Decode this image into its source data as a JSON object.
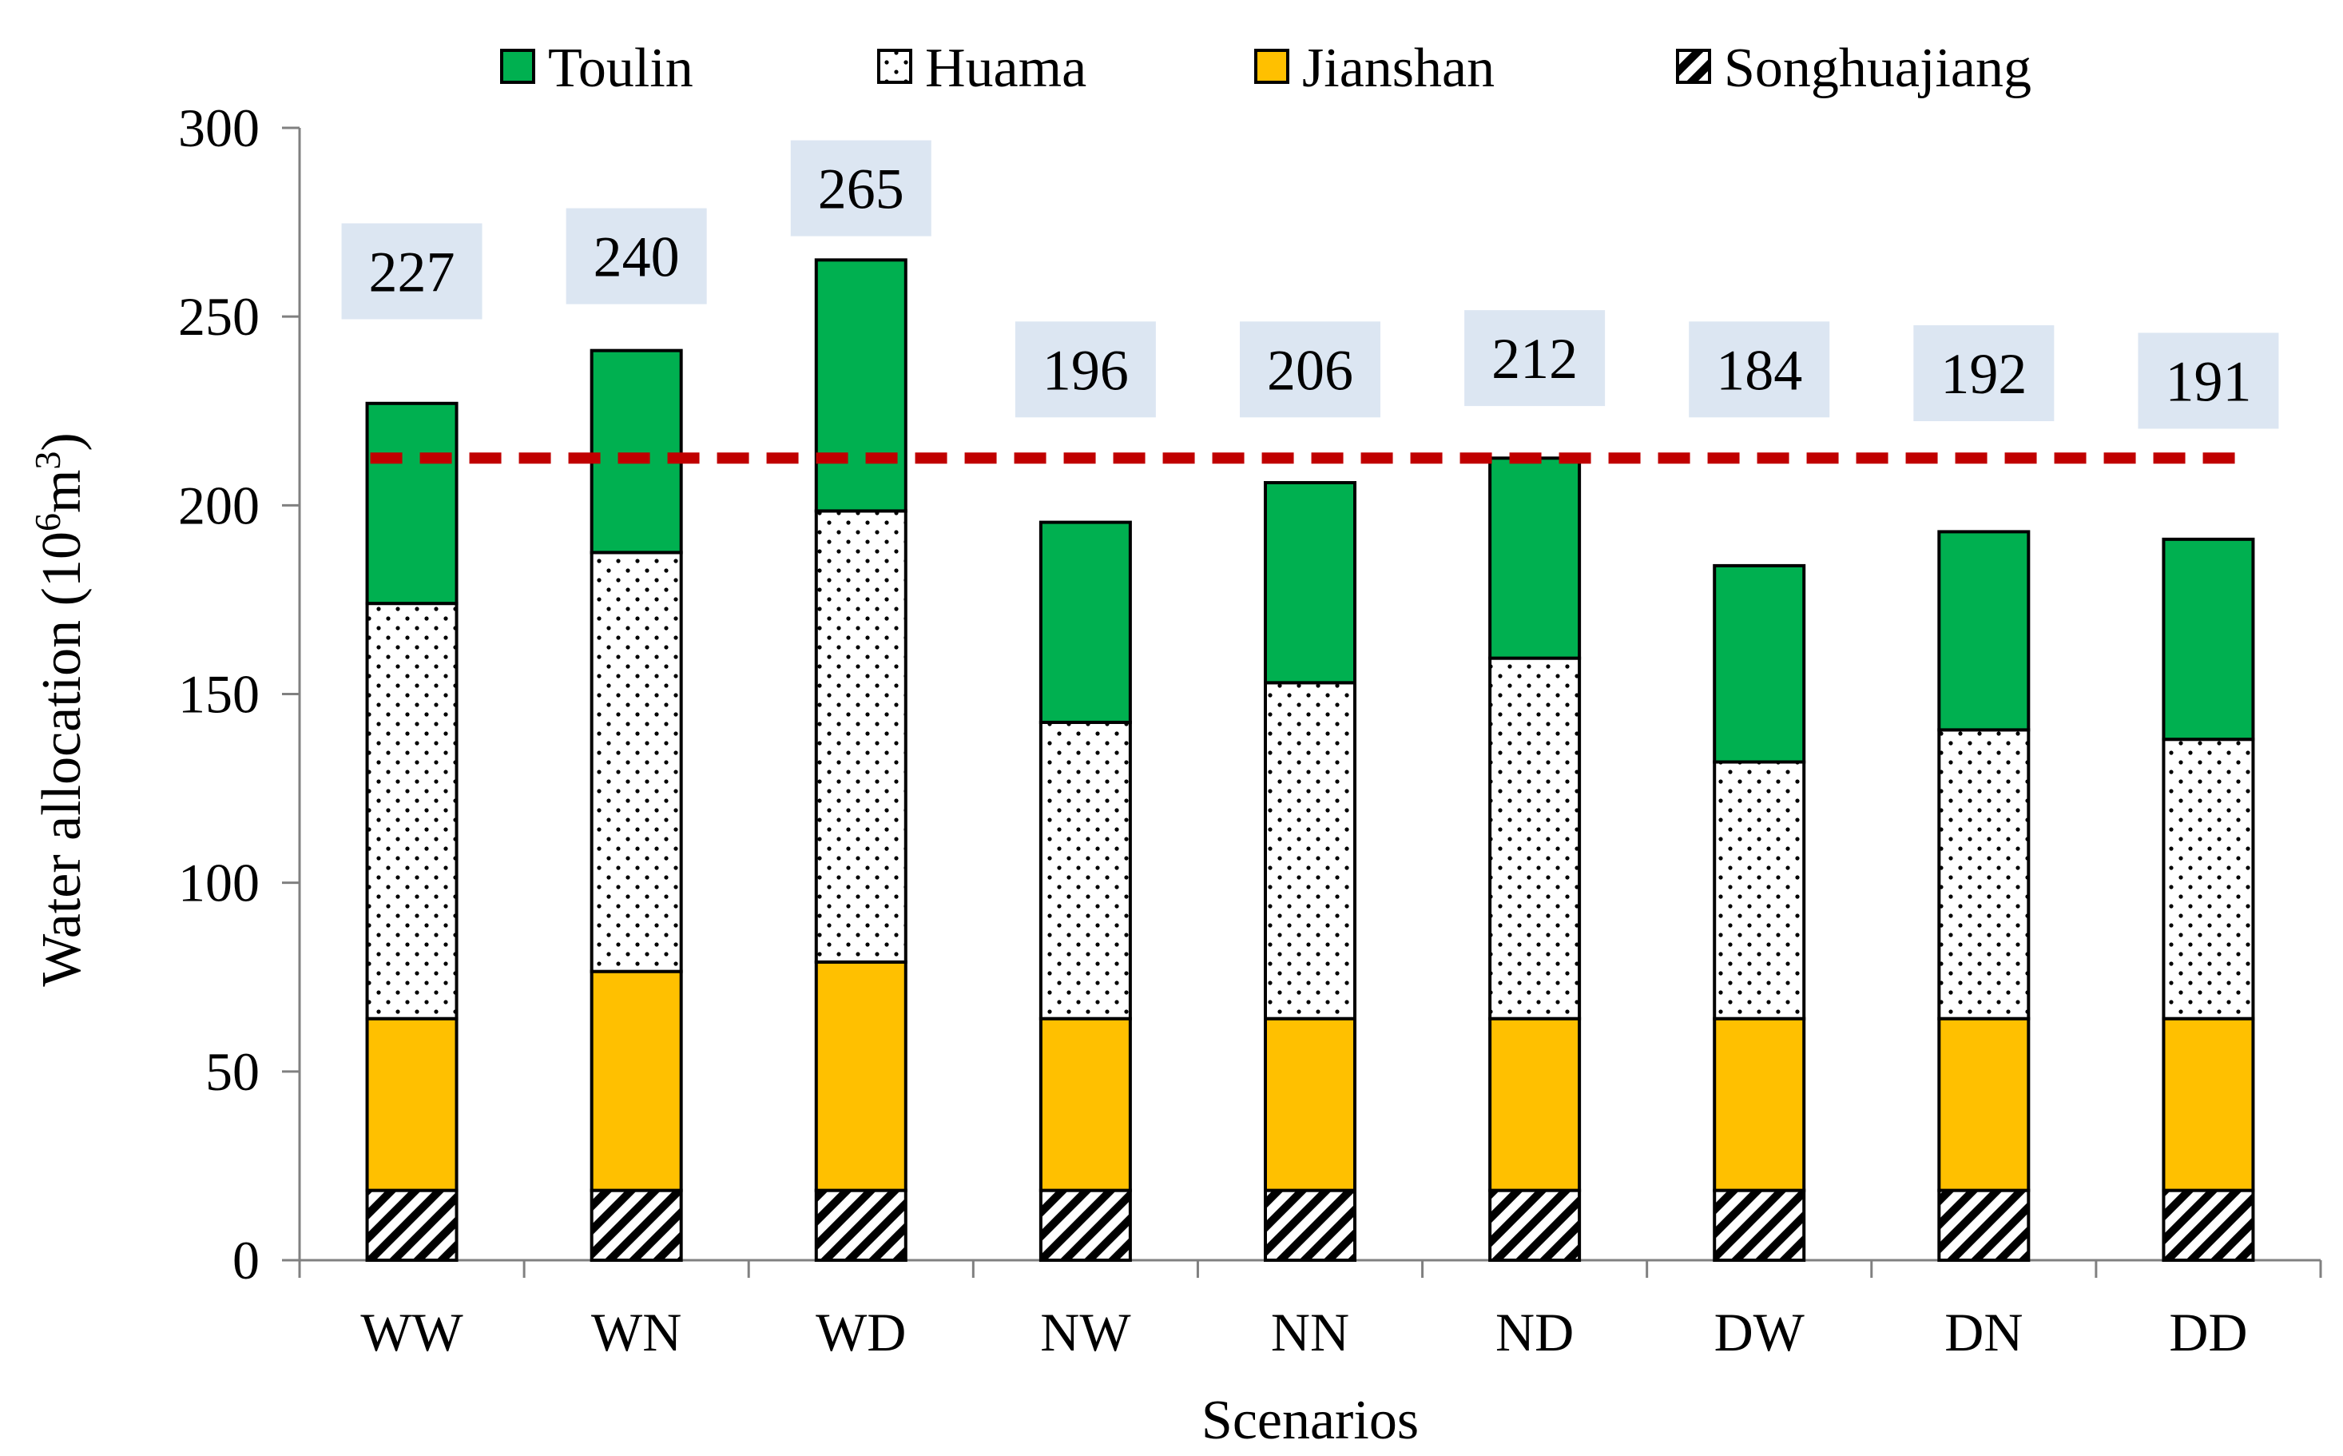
{
  "chart_data": {
    "type": "bar",
    "stacked": true,
    "title": "",
    "xlabel": "Scenarios",
    "ylabel": "Water allocation (10",
    "ylabel_sup1": "6",
    "ylabel_mid": "m",
    "ylabel_sup2": "3",
    "ylabel_end": ")",
    "ylim": [
      0,
      300
    ],
    "yticks": [
      0,
      50,
      100,
      150,
      200,
      250,
      300
    ],
    "ytick_labels": [
      "0",
      "50",
      "100",
      "150",
      "200",
      "250",
      "300"
    ],
    "categories": [
      "WW",
      "WN",
      "WD",
      "NW",
      "NN",
      "ND",
      "DW",
      "DN",
      "DD"
    ],
    "series": [
      {
        "name": "Songhuajiang",
        "pattern": "hatch",
        "values": [
          18.5,
          18.5,
          18.5,
          18.5,
          18.5,
          18.5,
          18.5,
          18.5,
          18.5
        ]
      },
      {
        "name": "Jianshan",
        "pattern": "solid",
        "color": "#FFC000",
        "values": [
          45.5,
          58,
          60.5,
          45.5,
          45.5,
          45.5,
          45.5,
          45.5,
          45.5
        ]
      },
      {
        "name": "Huama",
        "pattern": "dots",
        "values": [
          110,
          111,
          119.5,
          78.5,
          89,
          95.5,
          68,
          76.5,
          74
        ]
      },
      {
        "name": "Toulin",
        "pattern": "solid",
        "color": "#00B050",
        "values": [
          53,
          53.5,
          66.5,
          53,
          53,
          53,
          52,
          52.5,
          53
        ]
      }
    ],
    "legend_order": [
      "Toulin",
      "Huama",
      "Jianshan",
      "Songhuajiang"
    ],
    "totals": [
      "227",
      "240",
      "265",
      "196",
      "206",
      "212",
      "184",
      "192",
      "191"
    ],
    "total_label_values": [
      262,
      266,
      284,
      236,
      236,
      239,
      236,
      235,
      233
    ],
    "reference_line": {
      "value": 212.5,
      "color": "#C00000",
      "style": "dashed"
    },
    "label_box_color": "#DCE6F2"
  }
}
